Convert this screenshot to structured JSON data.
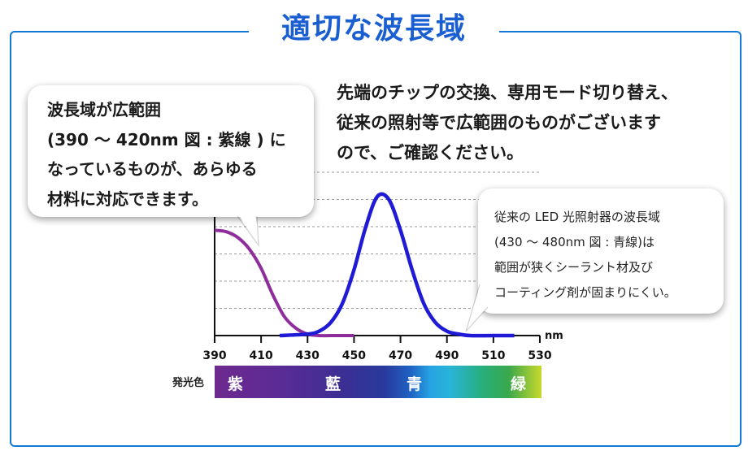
{
  "title": "適切な波長域",
  "intro": {
    "lines": [
      "先端のチップの交換、専用モード切り替え、",
      "従来の照射等で広範囲のものがございます",
      "ので、ご確認ください。"
    ]
  },
  "bubble_left": {
    "lines": [
      "波長域が広範囲",
      "(390 ～ 420nm 図 : 紫線 ) に",
      "なっているものが、あらゆる",
      "材料に対応できます。"
    ]
  },
  "bubble_right": {
    "lines": [
      "従来の LED 光照射器の波長域",
      "(430 ～ 480nm 図 : 青線)は",
      "範囲が狭くシーラント材及び",
      "コーティング剤が固まりにくい。"
    ]
  },
  "spectrum": {
    "label": "発光色",
    "bands": [
      "紫",
      "藍",
      "青",
      "緑"
    ]
  },
  "chart_data": {
    "type": "line",
    "xlabel": "nm",
    "ylabel": "",
    "xlim": [
      390,
      530
    ],
    "ylim": [
      0,
      1
    ],
    "xticks": [
      390,
      410,
      430,
      450,
      470,
      490,
      510,
      530
    ],
    "grid": true,
    "series": [
      {
        "name": "紫線 (390～420nm)",
        "color": "#8e2d9b",
        "x": [
          390,
          395,
          400,
          405,
          410,
          415,
          420,
          425,
          430,
          435,
          440,
          445,
          450
        ],
        "y": [
          0.72,
          0.71,
          0.67,
          0.59,
          0.46,
          0.28,
          0.13,
          0.05,
          0.01,
          0.0,
          0.0,
          0.0,
          0.0
        ]
      },
      {
        "name": "青線 (430～480nm)",
        "color": "#1f1ad6",
        "x": [
          418,
          430,
          435,
          440,
          445,
          450,
          455,
          460,
          465,
          470,
          475,
          480,
          485,
          490,
          495,
          500,
          510,
          519
        ],
        "y": [
          0.0,
          0.01,
          0.03,
          0.09,
          0.22,
          0.45,
          0.74,
          0.95,
          0.93,
          0.72,
          0.45,
          0.22,
          0.09,
          0.03,
          0.01,
          0.0,
          0.0,
          0.0
        ]
      }
    ]
  }
}
